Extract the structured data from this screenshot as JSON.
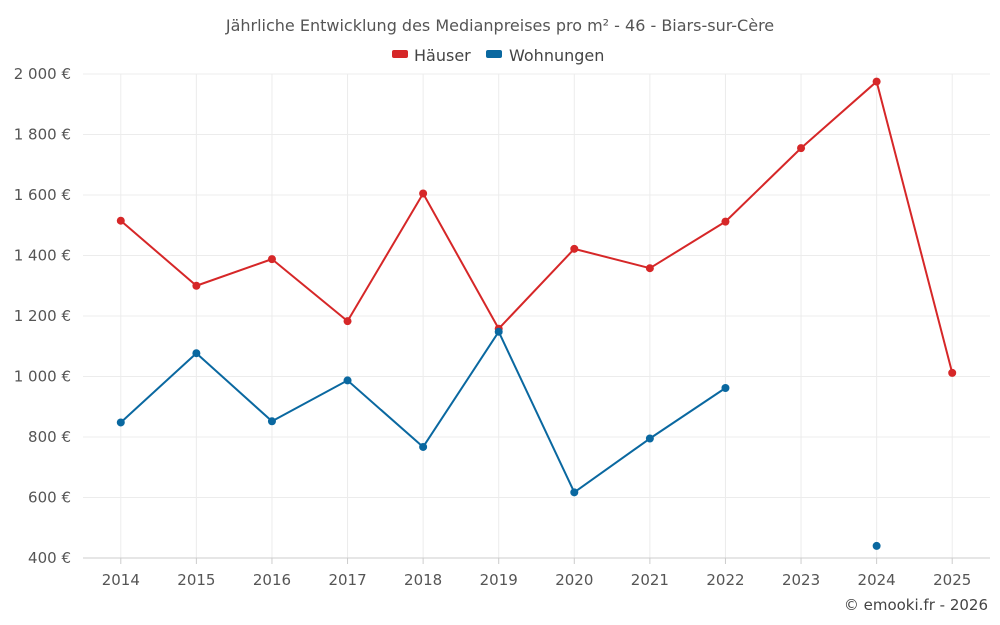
{
  "chart_data": {
    "type": "line",
    "title": "Jährliche Entwicklung des Medianpreises pro m² - 46 - Biars-sur-Cère",
    "categories": [
      "2014",
      "2015",
      "2016",
      "2017",
      "2018",
      "2019",
      "2020",
      "2021",
      "2022",
      "2023",
      "2024",
      "2025"
    ],
    "ylim": [
      400,
      2000
    ],
    "yticks": [
      400,
      600,
      800,
      1000,
      1200,
      1400,
      1600,
      1800,
      2000
    ],
    "ytick_labels": [
      "400 €",
      "600 €",
      "800 €",
      "1 000 €",
      "1 200 €",
      "1 400 €",
      "1 600 €",
      "1 800 €",
      "2 000 €"
    ],
    "legend_position": "top-center",
    "grid": true,
    "series": [
      {
        "name": "Häuser",
        "color": "#d62728",
        "values": [
          1515,
          1300,
          1388,
          1183,
          1605,
          1158,
          1422,
          1358,
          1512,
          1755,
          1975,
          1012
        ]
      },
      {
        "name": "Wohnungen",
        "color": "#0a68a0",
        "values": [
          848,
          1077,
          852,
          987,
          767,
          1148,
          617,
          795,
          962,
          null,
          440,
          null
        ]
      }
    ]
  },
  "credit": "© emooki.fr - 2026"
}
